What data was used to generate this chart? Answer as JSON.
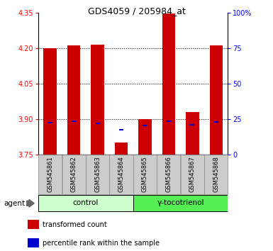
{
  "title": "GDS4059 / 205984_at",
  "samples": [
    "GSM545861",
    "GSM545862",
    "GSM545863",
    "GSM545864",
    "GSM545865",
    "GSM545866",
    "GSM545867",
    "GSM545868"
  ],
  "bar_values": [
    4.2,
    4.21,
    4.215,
    3.8,
    3.898,
    4.345,
    3.93,
    4.21
  ],
  "bar_bottom": 3.75,
  "blue_dot_values": [
    3.883,
    3.89,
    3.882,
    3.855,
    3.872,
    3.89,
    3.874,
    3.886
  ],
  "ylim": [
    3.75,
    4.35
  ],
  "right_ylim": [
    0,
    100
  ],
  "right_yticks": [
    0,
    25,
    50,
    75,
    100
  ],
  "right_yticklabels": [
    "0",
    "25",
    "50",
    "75",
    "100%"
  ],
  "left_yticks": [
    3.75,
    3.9,
    4.05,
    4.2,
    4.35
  ],
  "bar_color": "#cc0000",
  "blue_dot_color": "#0000cc",
  "group1_label": "control",
  "group2_label": "γ-tocotrienol",
  "group1_bg": "#ccffcc",
  "group2_bg": "#55ee55",
  "sample_bg": "#cccccc",
  "agent_label": "agent",
  "legend_red_label": "transformed count",
  "legend_blue_label": "percentile rank within the sample",
  "dotted_grid_values": [
    3.9,
    4.05,
    4.2
  ],
  "bar_width": 0.55,
  "blue_dot_size": 0.006
}
